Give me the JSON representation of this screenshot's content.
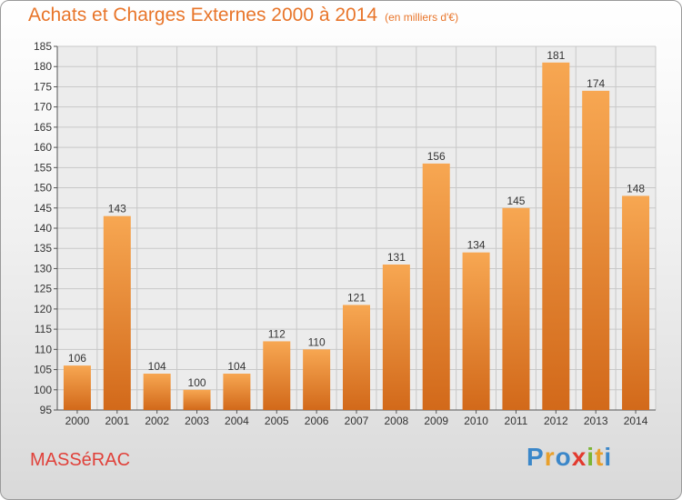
{
  "chart_data": {
    "type": "bar",
    "title": "Achats et Charges Externes 2000 à 2014",
    "subtitle": "(en milliers d'€)",
    "categories": [
      "2000",
      "2001",
      "2002",
      "2003",
      "2004",
      "2005",
      "2006",
      "2007",
      "2008",
      "2009",
      "2010",
      "2011",
      "2012",
      "2013",
      "2014"
    ],
    "values": [
      106,
      143,
      104,
      100,
      104,
      112,
      110,
      121,
      131,
      156,
      134,
      145,
      181,
      174,
      148
    ],
    "ylim": [
      95,
      185
    ],
    "yticks": [
      95,
      100,
      105,
      110,
      115,
      120,
      125,
      130,
      135,
      140,
      145,
      150,
      155,
      160,
      165,
      170,
      175,
      180,
      185
    ],
    "grid": true,
    "bar_color": "#f28c28"
  },
  "footer": {
    "commune": "MASSéRAC",
    "logo": {
      "letters": [
        "P",
        "r",
        "o",
        "x",
        "i",
        "t",
        "i"
      ],
      "colors": [
        "#3b87c9",
        "#e8a02c",
        "#3b87c9",
        "#e23a2e",
        "#7bb534",
        "#e8a02c",
        "#3b87c9"
      ]
    }
  }
}
